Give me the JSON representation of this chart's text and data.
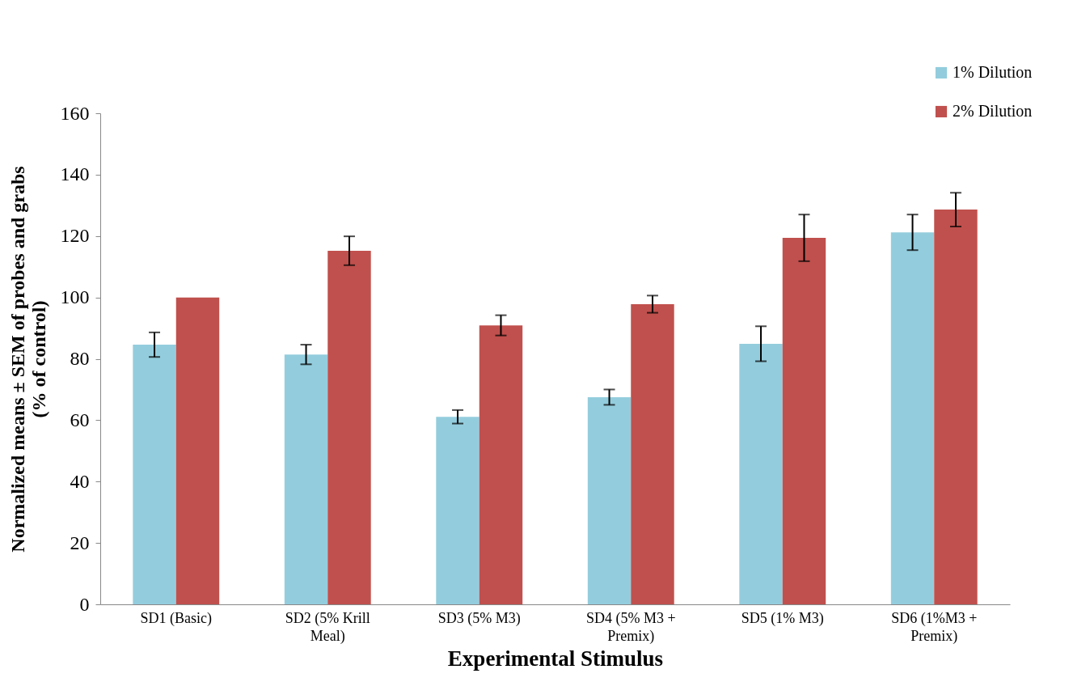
{
  "chart_data": {
    "type": "bar",
    "xlabel": "Experimental Stimulus",
    "ylabel": "Normalized means ± SEM of probes and grabs (% of control)",
    "categories": [
      "SD1 (Basic)",
      "SD2 (5% Krill Meal)",
      "SD3 (5% M3)",
      "SD4 (5% M3 + Premix)",
      "SD5 (1% M3)",
      "SD6 (1%M3 + Premix)"
    ],
    "series": [
      {
        "name": "1% Dilution",
        "color": "#93cddd",
        "values": [
          84.6,
          81.4,
          61.1,
          67.5,
          84.9,
          121.2
        ],
        "errors": [
          4,
          3.2,
          2.2,
          2.5,
          5.7,
          5.8
        ]
      },
      {
        "name": "2% Dilution",
        "color": "#c0504d",
        "values": [
          100,
          115.2,
          90.9,
          97.8,
          119.4,
          128.6
        ],
        "errors": [
          null,
          4.7,
          3.3,
          2.8,
          7.6,
          5.5
        ]
      }
    ],
    "ylim": [
      0,
      160
    ],
    "yticks": [
      0,
      20,
      40,
      60,
      80,
      100,
      120,
      140,
      160
    ],
    "legend": "top right",
    "grid": false
  }
}
